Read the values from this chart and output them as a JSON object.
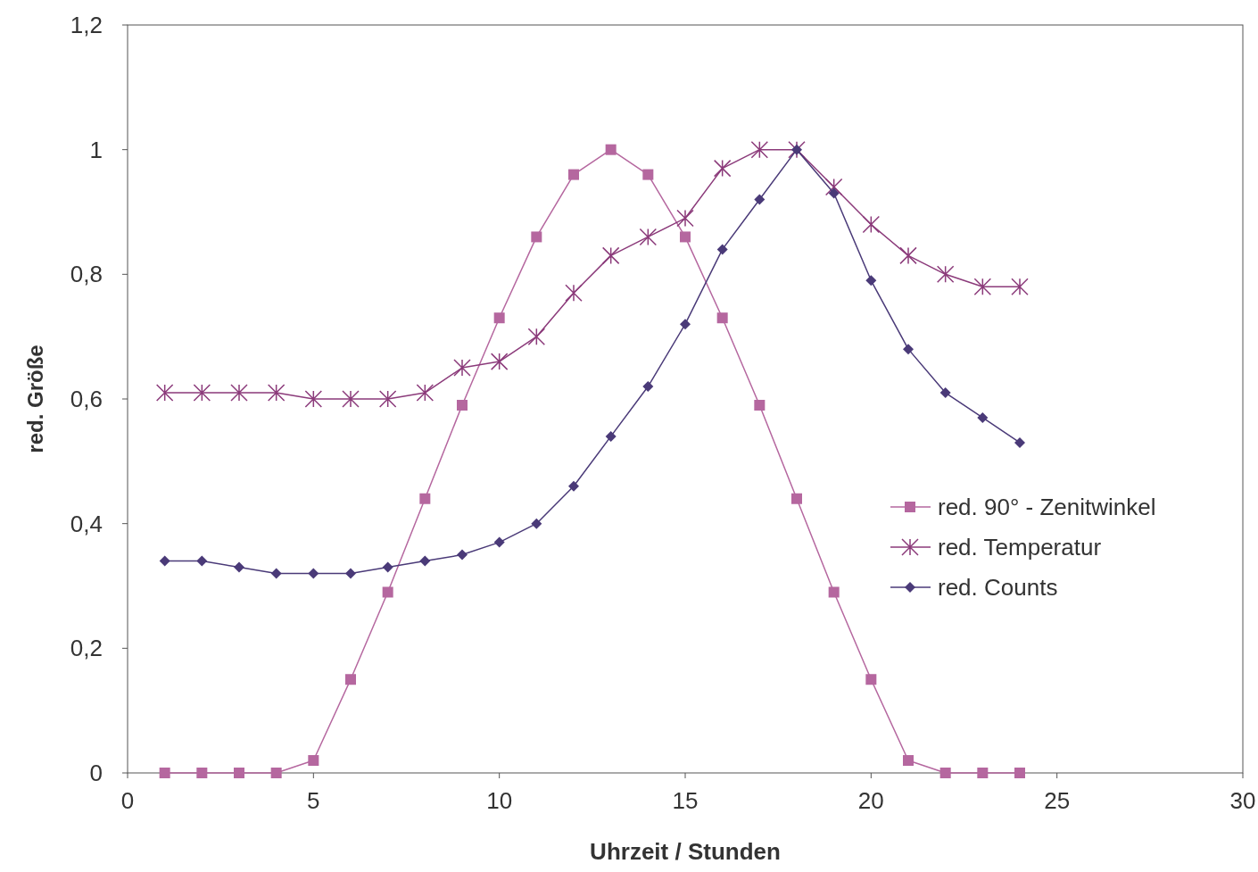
{
  "chart_data": {
    "type": "line",
    "xlabel": "Uhrzeit / Stunden",
    "ylabel": "red. Größe",
    "x": [
      1,
      2,
      3,
      4,
      5,
      6,
      7,
      8,
      9,
      10,
      11,
      12,
      13,
      14,
      15,
      16,
      17,
      18,
      19,
      20,
      21,
      22,
      23,
      24
    ],
    "xlim": [
      0,
      30
    ],
    "xticks": [
      0,
      5,
      10,
      15,
      20,
      25,
      30
    ],
    "ylim": [
      0,
      1.2
    ],
    "yticks": [
      0,
      {
        "value": 0.2,
        "label": "0,2"
      },
      {
        "value": 0.4,
        "label": "0,4"
      },
      {
        "value": 0.6,
        "label": "0,6"
      },
      {
        "value": 0.8,
        "label": "0,8"
      },
      1,
      {
        "value": 1.2,
        "label": "1,2"
      }
    ],
    "grid": false,
    "legend": "right",
    "series": [
      {
        "name": "red. 90° - Zenitwinkel",
        "color": "#b5679f",
        "marker": "square",
        "values": [
          0,
          0,
          0,
          0,
          0.02,
          0.15,
          0.29,
          0.44,
          0.59,
          0.73,
          0.86,
          0.96,
          1,
          0.96,
          0.86,
          0.73,
          0.59,
          0.44,
          0.29,
          0.15,
          0.02,
          0,
          0,
          0
        ]
      },
      {
        "name": "red. Temperatur",
        "color": "#8b3a7a",
        "marker": "cross",
        "values": [
          0.61,
          0.61,
          0.61,
          0.61,
          0.6,
          0.6,
          0.6,
          0.61,
          0.65,
          0.66,
          0.7,
          0.77,
          0.83,
          0.86,
          0.89,
          0.97,
          1,
          1,
          0.94,
          0.88,
          0.83,
          0.8,
          0.78,
          0.78
        ]
      },
      {
        "name": "red. Counts",
        "color": "#4a3a78",
        "marker": "diamond",
        "values": [
          0.34,
          0.34,
          0.33,
          0.32,
          0.32,
          0.32,
          0.33,
          0.34,
          0.35,
          0.37,
          0.4,
          0.46,
          0.54,
          0.62,
          0.72,
          0.84,
          0.92,
          1,
          0.93,
          0.79,
          0.68,
          0.61,
          0.57,
          0.53
        ]
      }
    ]
  }
}
